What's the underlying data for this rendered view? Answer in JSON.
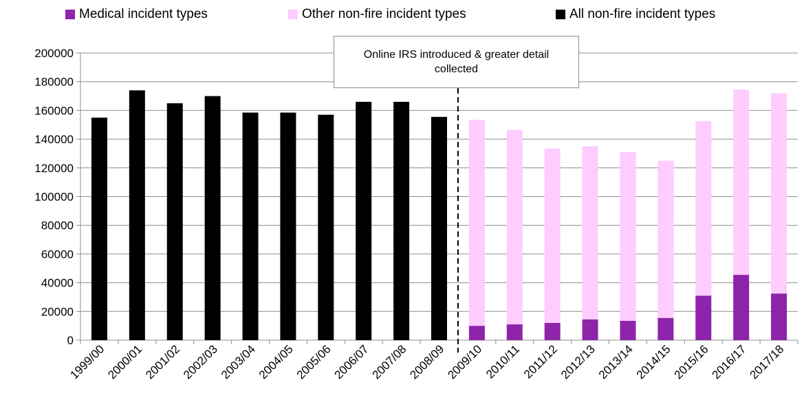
{
  "chart_data": {
    "type": "bar",
    "stacked": true,
    "categories": [
      "1999/00",
      "2000/01",
      "2001/02",
      "2002/03",
      "2003/04",
      "2004/05",
      "2005/06",
      "2006/07",
      "2007/08",
      "2008/09",
      "2009/10",
      "2010/11",
      "2011/12",
      "2012/13",
      "2013/14",
      "2014/15",
      "2015/16",
      "2016/17",
      "2017/18"
    ],
    "series": [
      {
        "name": "Medical incident types",
        "color": "#8e24aa",
        "values": [
          null,
          null,
          null,
          null,
          null,
          null,
          null,
          null,
          null,
          null,
          10000,
          11000,
          12000,
          14500,
          13500,
          15500,
          31000,
          45500,
          32500
        ]
      },
      {
        "name": "Other non-fire incident types",
        "color": "#ffccff",
        "values": [
          null,
          null,
          null,
          null,
          null,
          null,
          null,
          null,
          null,
          null,
          143500,
          135500,
          121500,
          120500,
          117500,
          109500,
          121500,
          129000,
          139500
        ]
      },
      {
        "name": "All non-fire incident types",
        "color": "#000000",
        "values": [
          155000,
          174000,
          165000,
          170000,
          158500,
          158500,
          157000,
          166000,
          166000,
          155500,
          null,
          null,
          null,
          null,
          null,
          null,
          null,
          null,
          null
        ]
      }
    ],
    "ylim": [
      0,
      200000
    ],
    "yticks": [
      "0",
      "20000",
      "40000",
      "60000",
      "80000",
      "100000",
      "120000",
      "140000",
      "160000",
      "180000",
      "200000"
    ],
    "grid": true,
    "legend_position": "top",
    "divider_after_category": "2008/09",
    "annotation": "Online IRS introduced & greater detail collected"
  }
}
